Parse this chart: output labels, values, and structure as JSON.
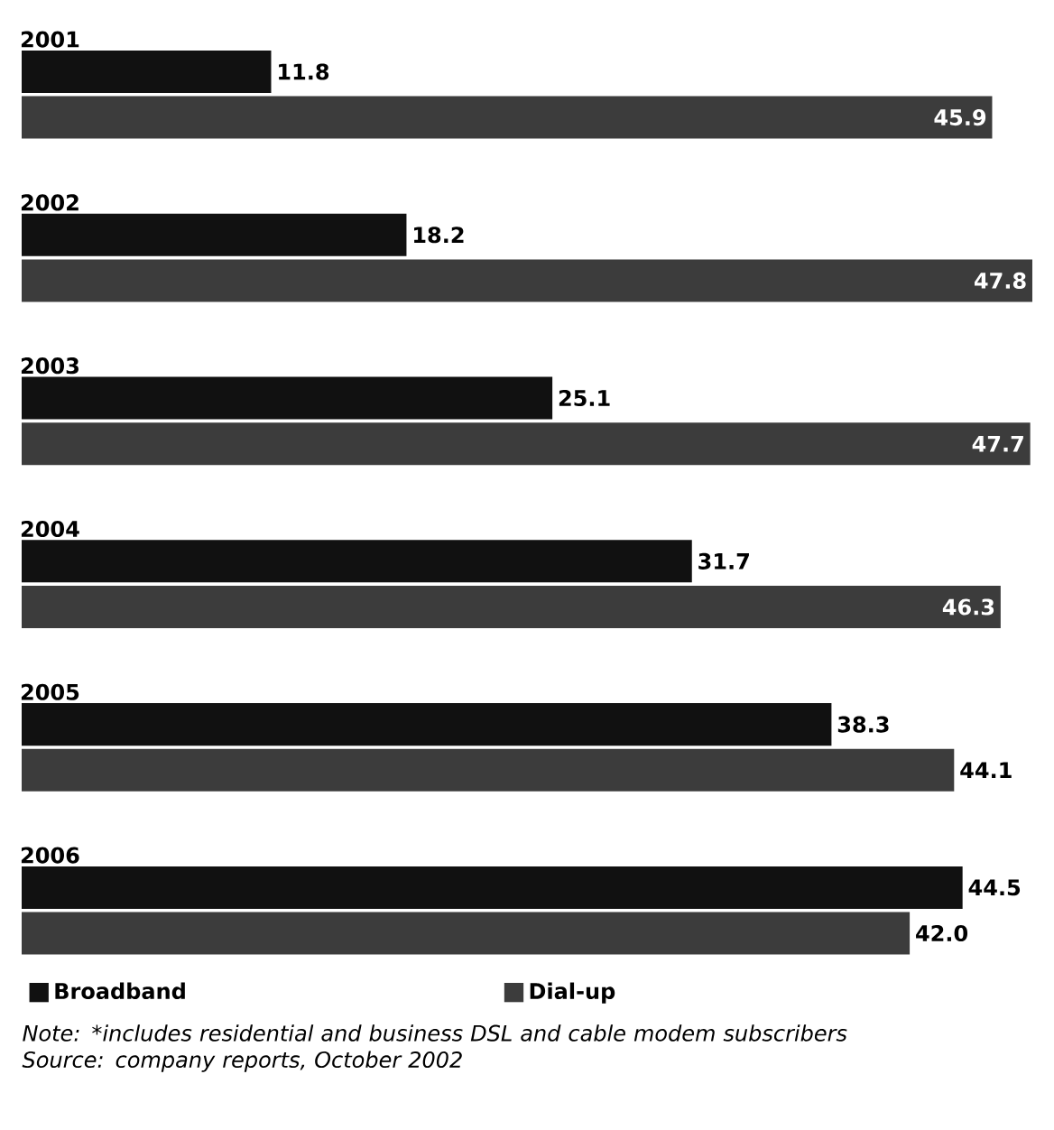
{
  "chart_data": {
    "type": "bar",
    "orientation": "horizontal",
    "categories": [
      "2001",
      "2002",
      "2003",
      "2004",
      "2005",
      "2006"
    ],
    "series": [
      {
        "name": "Broadband",
        "color": "#111111",
        "values": [
          11.8,
          18.2,
          25.1,
          31.7,
          38.3,
          44.5
        ],
        "value_labels": [
          "11.8",
          "18.2",
          "25.1",
          "31.7",
          "38.3",
          "44.5"
        ]
      },
      {
        "name": "Dial-up",
        "color": "#3c3c3c",
        "values": [
          45.9,
          47.8,
          47.7,
          46.3,
          44.1,
          42.0
        ],
        "value_labels": [
          "45.9",
          "47.8",
          "47.7",
          "46.3",
          "44.1",
          "42.0"
        ]
      }
    ],
    "legend": "bottom",
    "annotations": [
      "Note: *includes residential and business DSL and cable modem subscribers",
      "Source: company reports, October 2002"
    ]
  }
}
